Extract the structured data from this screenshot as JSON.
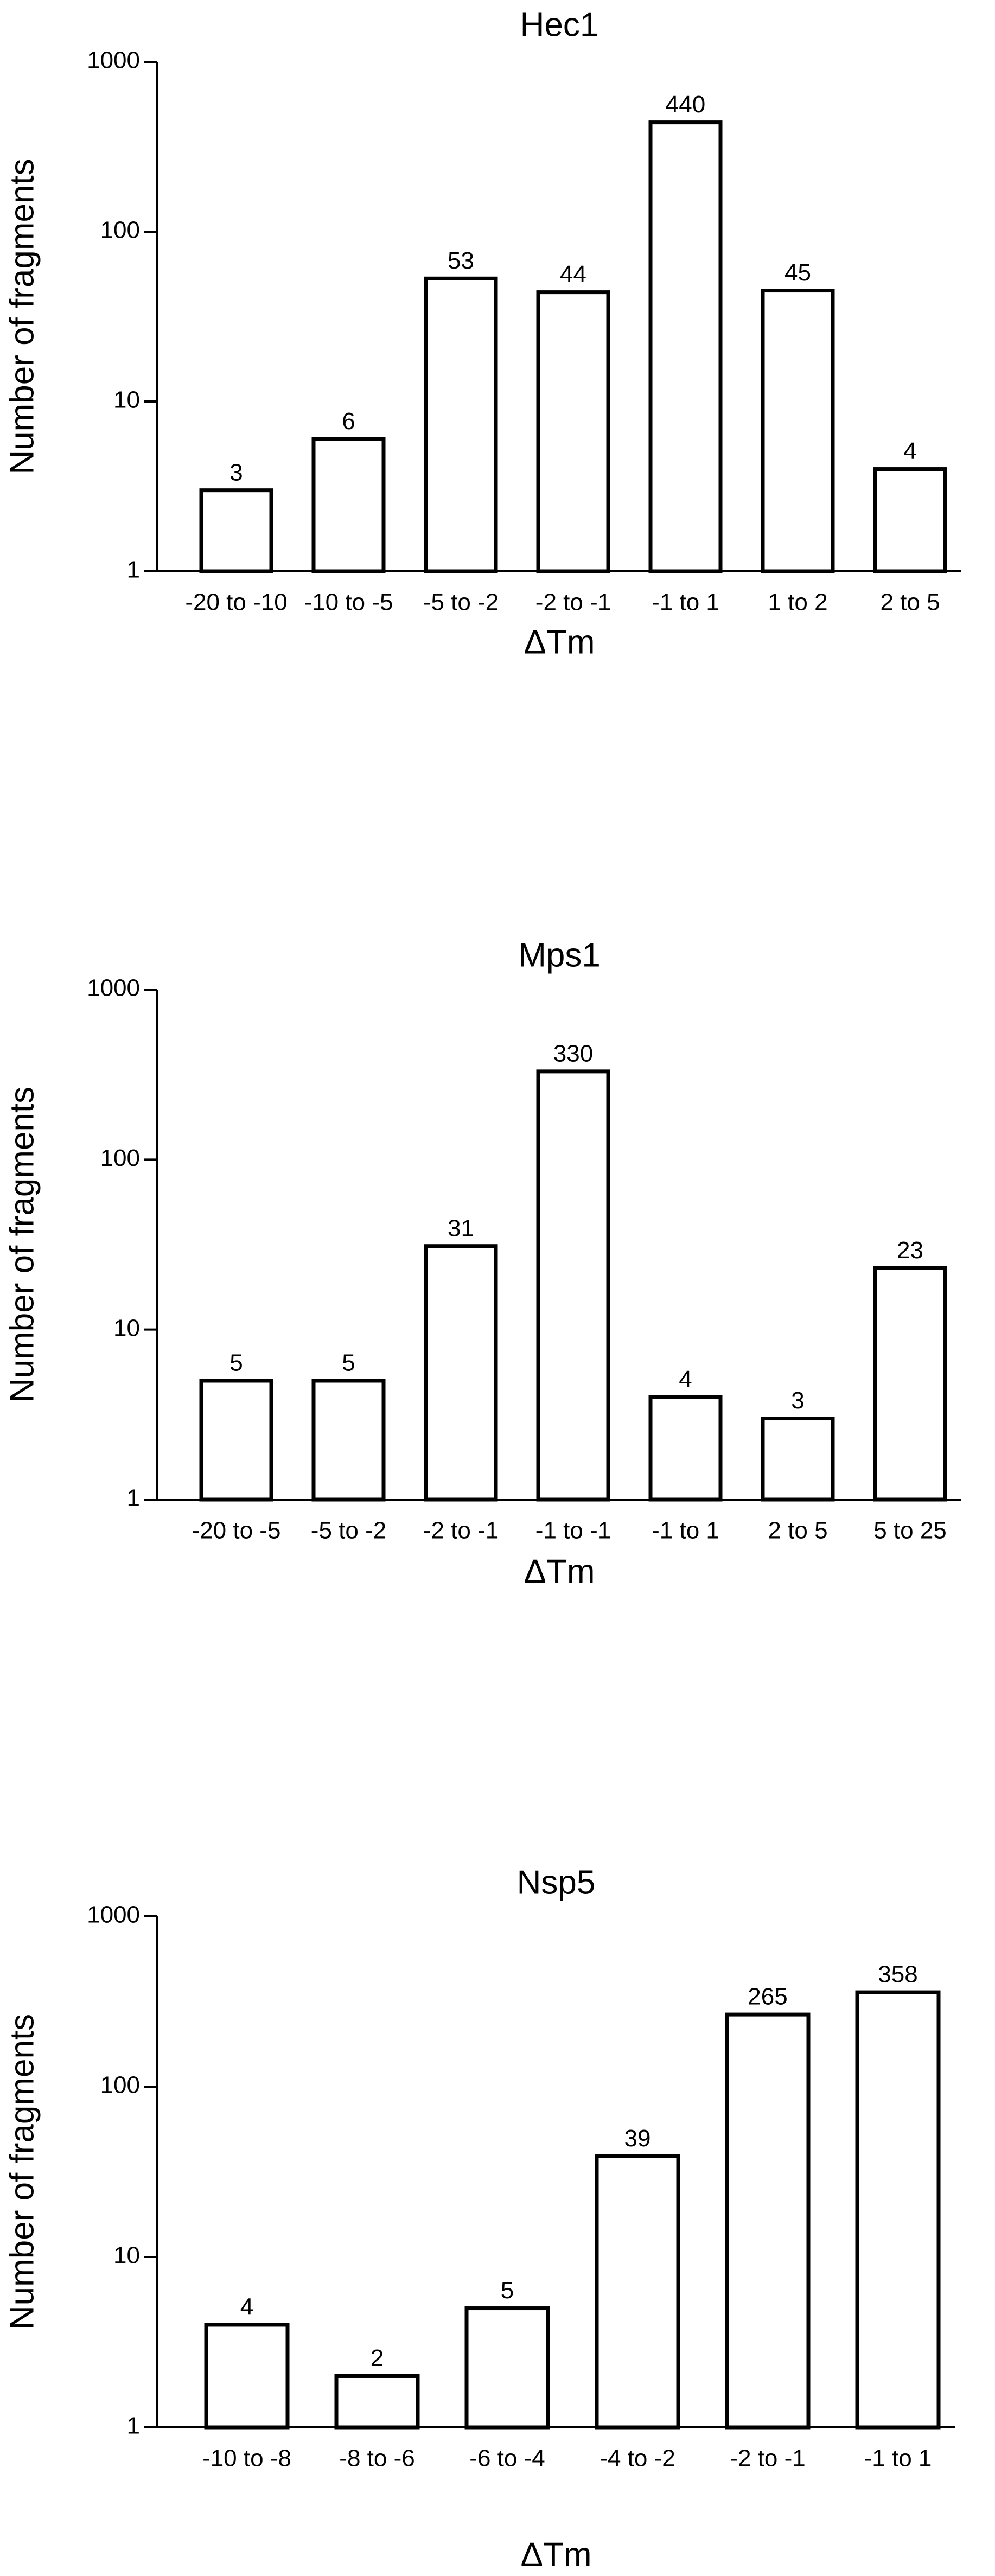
{
  "chart_data": [
    {
      "type": "bar",
      "title": "Hec1",
      "xlabel": "ΔTm",
      "ylabel": "Number of fragments",
      "yscale": "log",
      "ylim": [
        1,
        1000
      ],
      "yticks": [
        "1",
        "10",
        "100",
        "1000"
      ],
      "grid": false,
      "categories": [
        "-20 to -10",
        "-10 to -5",
        "-5 to -2",
        "-2 to -1",
        "-1 to 1",
        "1 to 2",
        "2 to 5"
      ],
      "values": [
        3,
        6,
        53,
        44,
        440,
        45,
        4
      ],
      "data_labels": [
        "3",
        "6",
        "53",
        "44",
        "440",
        "45",
        "4"
      ]
    },
    {
      "type": "bar",
      "title": "Mps1",
      "xlabel": "ΔTm",
      "ylabel": "Number of fragments",
      "yscale": "log",
      "ylim": [
        1,
        1000
      ],
      "yticks": [
        "1",
        "10",
        "100",
        "1000"
      ],
      "grid": false,
      "categories": [
        "-20 to -5",
        "-5 to -2",
        "-2 to -1",
        "-1 to -1",
        "-1 to 1",
        "2 to 5",
        "5 to 25"
      ],
      "values": [
        5,
        5,
        31,
        330,
        4,
        3,
        23
      ],
      "data_labels": [
        "5",
        "5",
        "31",
        "330",
        "4",
        "3",
        "23"
      ]
    },
    {
      "type": "bar",
      "title": "Nsp5",
      "xlabel": "ΔTm",
      "ylabel": "Number of fragments",
      "yscale": "log",
      "ylim": [
        1,
        1000
      ],
      "yticks": [
        "1",
        "10",
        "100",
        "1000"
      ],
      "grid": false,
      "categories": [
        "-10 to -8",
        "-8 to -6",
        "-6 to -4",
        "-4 to -2",
        "-2 to -1",
        "-1 to 1"
      ],
      "values": [
        4,
        2,
        5,
        39,
        265,
        358
      ],
      "data_labels": [
        "4",
        "2",
        "5",
        "39",
        "265",
        "358"
      ]
    }
  ]
}
